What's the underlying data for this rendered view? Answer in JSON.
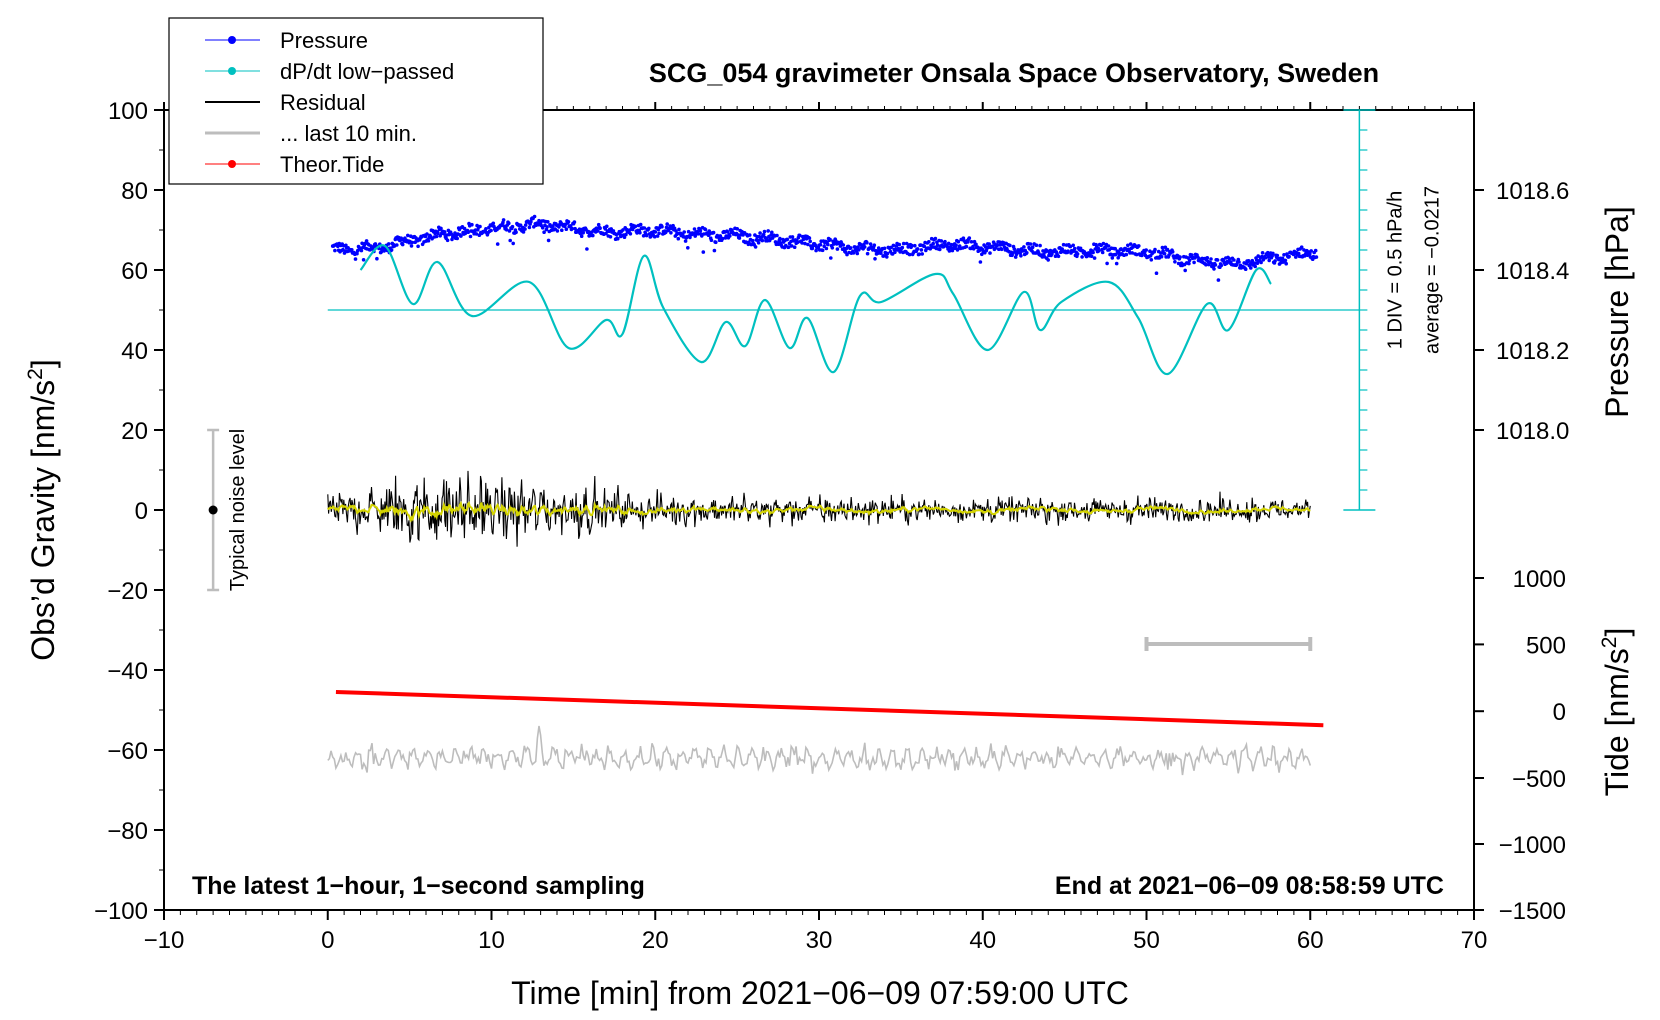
{
  "chart_data": {
    "type": "line",
    "title": "SCG_054 gravimeter Onsala Space Observatory, Sweden",
    "xlabel": "Time [min] from 2021−06−09 07:59:00 UTC",
    "ylabel_left": "Obs’d Gravity [nm/s",
    "ylabel_left_sup": "2",
    "ylabel_left_end": "]",
    "ylabel_right_top": "Pressure [hPa]",
    "ylabel_right_bottom": "Tide [nm/s",
    "ylabel_right_bottom_sup": "2",
    "ylabel_right_bottom_end": "]",
    "xlim": [
      -10,
      70
    ],
    "ylim": [
      -100,
      100
    ],
    "x_ticks": [
      {
        "value": -10,
        "label": "−10"
      },
      {
        "value": 0,
        "label": "0"
      },
      {
        "value": 10,
        "label": "10"
      },
      {
        "value": 20,
        "label": "20"
      },
      {
        "value": 30,
        "label": "30"
      },
      {
        "value": 40,
        "label": "40"
      },
      {
        "value": 50,
        "label": "50"
      },
      {
        "value": 60,
        "label": "60"
      },
      {
        "value": 70,
        "label": "70"
      }
    ],
    "y_ticks": [
      {
        "value": 100,
        "label": "100"
      },
      {
        "value": 80,
        "label": "80"
      },
      {
        "value": 60,
        "label": "60"
      },
      {
        "value": 40,
        "label": "40"
      },
      {
        "value": 20,
        "label": "20"
      },
      {
        "value": 0,
        "label": "0"
      },
      {
        "value": -20,
        "label": "−20"
      },
      {
        "value": -40,
        "label": "−40"
      },
      {
        "value": -60,
        "label": "−60"
      },
      {
        "value": -80,
        "label": "−80"
      },
      {
        "value": -100,
        "label": "−100"
      }
    ],
    "pressure_ticks": [
      {
        "value": 1018.6,
        "label": "1018.6",
        "gravity": 80
      },
      {
        "value": 1018.4,
        "label": "1018.4",
        "gravity": 60
      },
      {
        "value": 1018.2,
        "label": "1018.2",
        "gravity": 40
      },
      {
        "value": 1018.0,
        "label": "1018.0",
        "gravity": 20
      }
    ],
    "tide_ticks": [
      {
        "value": 1000,
        "label": "1000",
        "gravity": -17
      },
      {
        "value": 500,
        "label": "500",
        "gravity": -33.6
      },
      {
        "value": 0,
        "label": "0",
        "gravity": -50.3
      },
      {
        "value": -500,
        "label": "−500",
        "gravity": -67
      },
      {
        "value": -1000,
        "label": "−1000",
        "gravity": -83.5
      },
      {
        "value": -1500,
        "label": "−1500",
        "gravity": -100
      }
    ],
    "legend": {
      "placement": "top-left",
      "entries": [
        {
          "label": "Pressure",
          "color": "#0000ff",
          "marker": "dot"
        },
        {
          "label": "dP/dt low−passed",
          "color": "#00c0c0",
          "marker": "dot"
        },
        {
          "label": "Residual",
          "color": "#000000",
          "marker": "none"
        },
        {
          "label": "... last 10 min.",
          "color": "#bdbdbd",
          "marker": "none"
        },
        {
          "label": "Theor.Tide",
          "color": "#ff0000",
          "marker": "dot"
        }
      ]
    },
    "series": [
      {
        "name": "Pressure",
        "color": "#0000ff",
        "axis": "pressure",
        "x": [
          0.3,
          3,
          7,
          10,
          13,
          17,
          20,
          22,
          25,
          28,
          32,
          35,
          38,
          41,
          44,
          47,
          50,
          53,
          55.5,
          58,
          60.4
        ],
        "values": [
          65,
          65.5,
          69,
          70.5,
          71.5,
          69.5,
          70,
          69,
          68.5,
          67.5,
          65.5,
          65,
          66.5,
          65.5,
          64.5,
          65,
          64.5,
          62.5,
          61.5,
          63,
          64.5
        ],
        "unit": "gravity-scale (1 DIV = 5 nm/s2)"
      },
      {
        "name": "dP/dt low-passed",
        "color": "#00c0c0",
        "axis": "pressure-rate",
        "x": [
          2,
          3.5,
          5.2,
          6.7,
          8.8,
          12.3,
          14.7,
          17,
          18,
          19.3,
          20.5,
          22.8,
          24.3,
          25.5,
          26.7,
          28.2,
          29.3,
          30.9,
          32.5,
          33.8,
          37.1,
          38.2,
          40.3,
          42.5,
          43.5,
          44.8,
          47.7,
          49.5,
          51.3,
          53.7,
          55,
          56.7,
          57.6
        ],
        "values": [
          60,
          66,
          51.5,
          62,
          48.5,
          57,
          40.5,
          47.5,
          44,
          63.5,
          50.5,
          37,
          47,
          41,
          52.5,
          40.5,
          48,
          34.5,
          53.5,
          52,
          59,
          54,
          40,
          54.5,
          45,
          52,
          57,
          48,
          34,
          51.5,
          45,
          60,
          56.5
        ],
        "baseline": 50,
        "unit": "1 DIV = 0.5 hPa/h"
      },
      {
        "name": "Residual",
        "color": "#000000",
        "axis": "gravity",
        "x_range": [
          0,
          60
        ],
        "amplitude_envelope": {
          "x": [
            0,
            5,
            10,
            13,
            20,
            30,
            40,
            50,
            60
          ],
          "values": [
            2.5,
            8,
            7,
            6,
            3.2,
            3,
            2.6,
            2.8,
            2.4
          ]
        }
      },
      {
        "name": "Residual (smoothed)",
        "color": "#d4d400",
        "axis": "gravity",
        "x_range": [
          0,
          60
        ]
      },
      {
        "name": "... last 10 min.",
        "color": "#bdbdbd",
        "axis": "gravity",
        "x_range": [
          0,
          60
        ],
        "offset": -62,
        "window": [
          50,
          60
        ]
      },
      {
        "name": "Theor.Tide",
        "color": "#ff0000",
        "axis": "gravity",
        "x": [
          0.5,
          60.8
        ],
        "values": [
          -45.5,
          -53.8
        ]
      }
    ],
    "noise_bar": {
      "x": -7,
      "center": 0,
      "half_range": 20,
      "label": "Typical noise level"
    },
    "pressure_scale": {
      "x": 63,
      "top": 100,
      "bottom": 0,
      "divisions": 20,
      "label": "1 DIV = 0.5 hPa/h",
      "average_label": "average = −0.0217"
    },
    "notes": {
      "bottom_left": "The latest 1−hour, 1−second sampling",
      "bottom_right": "End at 2021−06−09 08:58:59 UTC"
    }
  }
}
